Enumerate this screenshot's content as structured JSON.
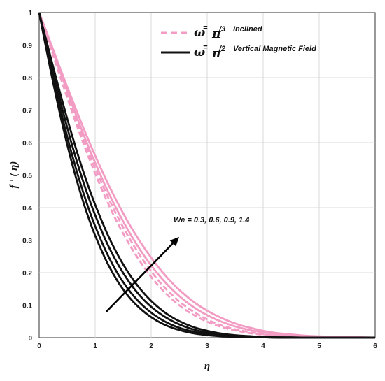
{
  "chart_data": {
    "type": "line",
    "xlabel": "η",
    "ylabel": "f ' ( η)",
    "xlim": [
      0,
      6
    ],
    "ylim": [
      0,
      1
    ],
    "x_ticks": [
      "0",
      "1",
      "2",
      "3",
      "4",
      "5",
      "6"
    ],
    "y_ticks": [
      "0",
      "0.1",
      "0.2",
      "0.3",
      "0.4",
      "0.5",
      "0.6",
      "0.7",
      "0.8",
      "0.9",
      "1"
    ],
    "grid": true,
    "legend": {
      "placement": "top-right",
      "entries": [
        {
          "symbol": "ω",
          "eq": "=",
          "const": "π",
          "sup": "/3",
          "text": "Inclined",
          "color": "#f29cc4",
          "dash": true
        },
        {
          "symbol": "ω",
          "eq": "=",
          "const": "π",
          "sup": "/2",
          "text": "Vertical Magnetic Field",
          "color": "#111111",
          "dash": false
        }
      ]
    },
    "annotation": "We = 0.3, 0.6, 0.9, 1.4",
    "annotation_arrow": {
      "from": [
        1.2,
        0.08
      ],
      "to": [
        2.5,
        0.31
      ]
    },
    "x": [
      0,
      0.1,
      0.2,
      0.3,
      0.4,
      0.5,
      0.6,
      0.7,
      0.8,
      0.9,
      1.0,
      1.2,
      1.4,
      1.6,
      1.8,
      2.0,
      2.2,
      2.4,
      2.6,
      2.8,
      3.0,
      3.2,
      3.4,
      3.6,
      3.8,
      4.0,
      4.25,
      4.5,
      4.75,
      5.0,
      5.25,
      5.5,
      5.75,
      6.0
    ],
    "series": [
      {
        "group": "inclined",
        "We": "0.3",
        "style": "dashed",
        "color": "#f29cc4",
        "values": [
          1.0,
          0.95,
          0.899,
          0.848,
          0.798,
          0.749,
          0.701,
          0.654,
          0.608,
          0.564,
          0.522,
          0.443,
          0.372,
          0.309,
          0.253,
          0.204,
          0.162,
          0.127,
          0.098,
          0.075,
          0.056,
          0.041,
          0.03,
          0.022,
          0.016,
          0.011,
          0.007,
          0.004,
          0.003,
          0.002,
          0.001,
          0.001,
          0.0,
          0.0
        ]
      },
      {
        "group": "inclined",
        "We": "0.6",
        "style": "dashed",
        "color": "#f29cc4",
        "values": [
          1.0,
          0.948,
          0.895,
          0.842,
          0.79,
          0.739,
          0.689,
          0.64,
          0.593,
          0.548,
          0.505,
          0.425,
          0.353,
          0.29,
          0.235,
          0.187,
          0.147,
          0.114,
          0.087,
          0.066,
          0.049,
          0.036,
          0.026,
          0.019,
          0.013,
          0.009,
          0.006,
          0.004,
          0.002,
          0.001,
          0.001,
          0.0,
          0.0,
          0.0
        ]
      },
      {
        "group": "inclined",
        "We": "0.9",
        "style": "solid",
        "color": "#f29cc4",
        "values": [
          1.0,
          0.952,
          0.903,
          0.854,
          0.806,
          0.758,
          0.712,
          0.666,
          0.622,
          0.579,
          0.538,
          0.46,
          0.39,
          0.327,
          0.271,
          0.222,
          0.18,
          0.144,
          0.114,
          0.089,
          0.069,
          0.053,
          0.04,
          0.03,
          0.022,
          0.016,
          0.011,
          0.007,
          0.005,
          0.003,
          0.002,
          0.001,
          0.001,
          0.0
        ]
      },
      {
        "group": "inclined",
        "We": "1.4",
        "style": "solid",
        "color": "#f29cc4",
        "values": [
          1.0,
          0.955,
          0.909,
          0.863,
          0.817,
          0.772,
          0.728,
          0.684,
          0.641,
          0.6,
          0.56,
          0.484,
          0.415,
          0.352,
          0.296,
          0.246,
          0.202,
          0.164,
          0.132,
          0.105,
          0.083,
          0.065,
          0.05,
          0.038,
          0.029,
          0.021,
          0.014,
          0.01,
          0.006,
          0.004,
          0.003,
          0.002,
          0.001,
          0.0
        ]
      },
      {
        "group": "vertical",
        "We": "0.3",
        "style": "solid",
        "color": "#111111",
        "values": [
          1.0,
          0.912,
          0.826,
          0.744,
          0.667,
          0.595,
          0.528,
          0.467,
          0.411,
          0.36,
          0.314,
          0.236,
          0.174,
          0.126,
          0.09,
          0.063,
          0.043,
          0.029,
          0.019,
          0.012,
          0.008,
          0.005,
          0.003,
          0.002,
          0.001,
          0.001,
          0.0,
          0.0,
          0.0,
          0.0,
          0.0,
          0.0,
          0.0,
          0.0
        ]
      },
      {
        "group": "vertical",
        "We": "0.6",
        "style": "solid",
        "color": "#111111",
        "values": [
          1.0,
          0.918,
          0.838,
          0.761,
          0.688,
          0.619,
          0.555,
          0.495,
          0.44,
          0.389,
          0.343,
          0.263,
          0.198,
          0.147,
          0.107,
          0.077,
          0.054,
          0.037,
          0.025,
          0.017,
          0.011,
          0.007,
          0.004,
          0.003,
          0.002,
          0.001,
          0.0,
          0.0,
          0.0,
          0.0,
          0.0,
          0.0,
          0.0,
          0.0
        ]
      },
      {
        "group": "vertical",
        "We": "0.9",
        "style": "solid",
        "color": "#111111",
        "values": [
          1.0,
          0.925,
          0.851,
          0.78,
          0.712,
          0.647,
          0.585,
          0.527,
          0.473,
          0.423,
          0.377,
          0.295,
          0.228,
          0.173,
          0.129,
          0.095,
          0.069,
          0.049,
          0.034,
          0.023,
          0.016,
          0.01,
          0.007,
          0.004,
          0.003,
          0.002,
          0.001,
          0.0,
          0.0,
          0.0,
          0.0,
          0.0,
          0.0,
          0.0
        ]
      },
      {
        "group": "vertical",
        "We": "1.4",
        "style": "solid",
        "color": "#111111",
        "values": [
          1.0,
          0.933,
          0.866,
          0.8,
          0.736,
          0.674,
          0.615,
          0.558,
          0.505,
          0.455,
          0.409,
          0.326,
          0.256,
          0.198,
          0.151,
          0.113,
          0.083,
          0.06,
          0.043,
          0.03,
          0.021,
          0.014,
          0.009,
          0.006,
          0.004,
          0.002,
          0.001,
          0.001,
          0.0,
          0.0,
          0.0,
          0.0,
          0.0,
          0.0
        ]
      }
    ]
  }
}
